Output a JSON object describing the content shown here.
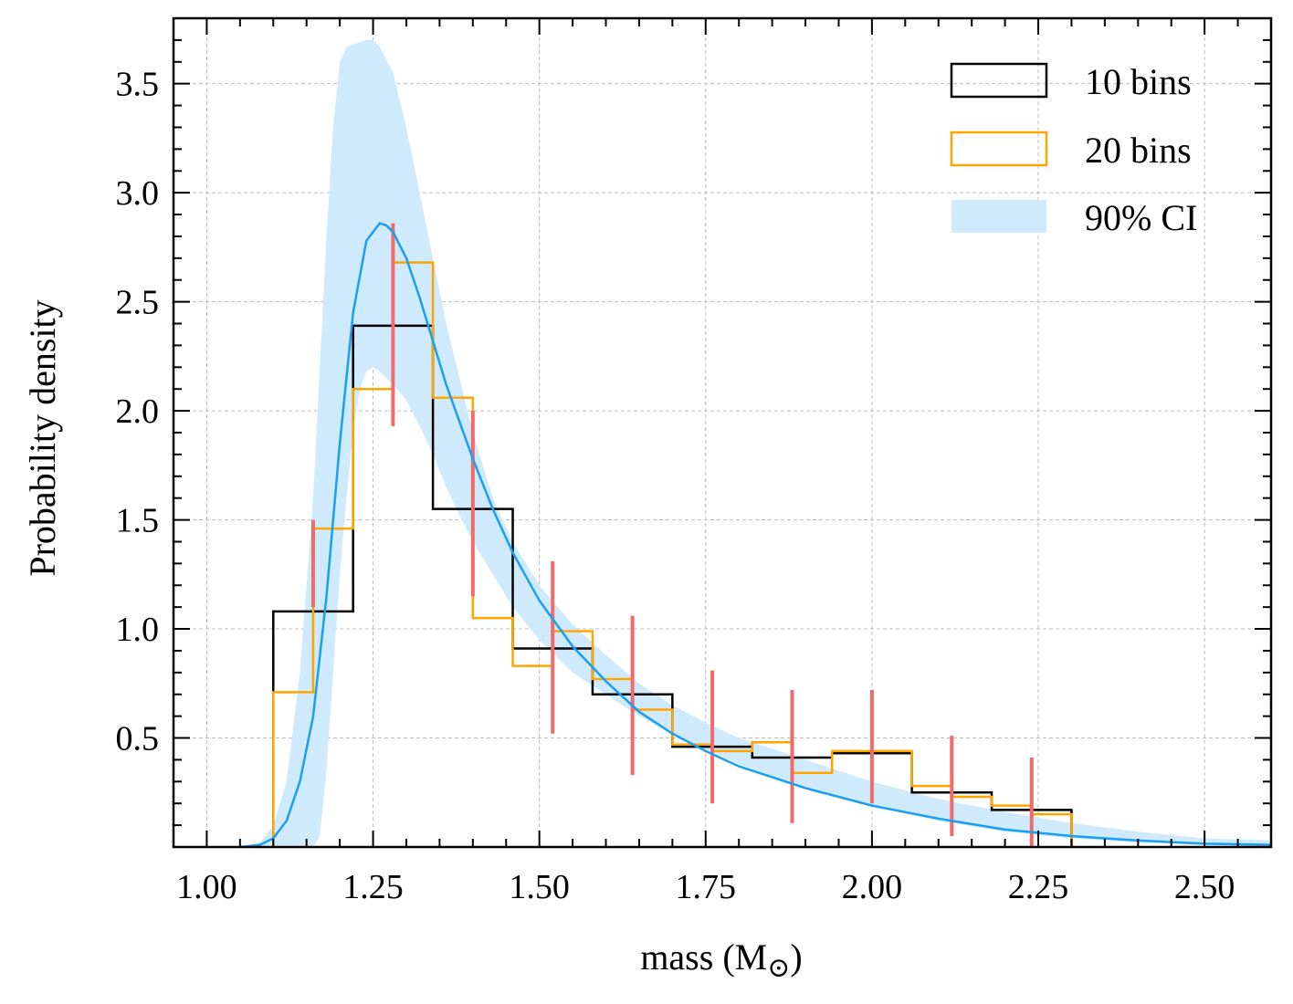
{
  "chart_data": {
    "type": "histogram",
    "title": "",
    "xlabel": "mass (M",
    "xlabel_sub": "⊙",
    "xlabel_close": ")",
    "ylabel": "Probability density",
    "xlim": [
      0.95,
      2.6
    ],
    "ylim": [
      0.0,
      3.8
    ],
    "grid": true,
    "legend_position": "top-right",
    "x_ticks": [
      1.0,
      1.25,
      1.5,
      1.75,
      2.0,
      2.25,
      2.5
    ],
    "x_tick_labels": [
      "1.00",
      "1.25",
      "1.50",
      "1.75",
      "2.00",
      "2.25",
      "2.50"
    ],
    "y_ticks": [
      0.5,
      1.0,
      1.5,
      2.0,
      2.5,
      3.0,
      3.5
    ],
    "y_tick_labels": [
      "0.5",
      "1.0",
      "1.5",
      "2.0",
      "2.5",
      "3.0",
      "3.5"
    ],
    "legend": [
      {
        "label": "10 bins",
        "kind": "outline",
        "color": "#000000"
      },
      {
        "label": "20 bins",
        "kind": "outline",
        "color": "#ffa500"
      },
      {
        "label": "90% CI",
        "kind": "fill",
        "color": "#cfeafc"
      }
    ],
    "hist_10": {
      "name": "10 bins",
      "color": "#000000",
      "edges": [
        1.1,
        1.22,
        1.34,
        1.46,
        1.58,
        1.7,
        1.82,
        1.94,
        2.06,
        2.18,
        2.3
      ],
      "values": [
        1.08,
        2.39,
        1.55,
        0.91,
        0.7,
        0.46,
        0.41,
        0.43,
        0.25,
        0.17
      ]
    },
    "hist_20": {
      "name": "20 bins",
      "color": "#ffa500",
      "edges": [
        1.1,
        1.16,
        1.22,
        1.28,
        1.34,
        1.4,
        1.46,
        1.52,
        1.58,
        1.64,
        1.7,
        1.76,
        1.82,
        1.88,
        1.94,
        2.0,
        2.06,
        2.12,
        2.18,
        2.24,
        2.3
      ],
      "values": [
        0.71,
        1.46,
        2.1,
        2.68,
        2.06,
        1.05,
        0.83,
        0.99,
        0.77,
        0.63,
        0.47,
        0.44,
        0.48,
        0.34,
        0.44,
        0.44,
        0.28,
        0.23,
        0.19,
        0.15
      ]
    },
    "error_bars": {
      "color": "#f26b6b",
      "x": [
        1.16,
        1.28,
        1.4,
        1.52,
        1.64,
        1.76,
        1.88,
        2.0,
        2.12,
        2.24
      ],
      "low": [
        1.1,
        1.93,
        1.15,
        0.52,
        0.33,
        0.2,
        0.11,
        0.2,
        0.05,
        0.0
      ],
      "high": [
        1.5,
        2.86,
        2.0,
        1.31,
        1.06,
        0.81,
        0.72,
        0.72,
        0.51,
        0.41
      ]
    },
    "ci_band": {
      "name": "90% CI",
      "color": "#cfeafc",
      "x": [
        1.05,
        1.08,
        1.1,
        1.12,
        1.14,
        1.16,
        1.17,
        1.18,
        1.19,
        1.2,
        1.21,
        1.22,
        1.23,
        1.24,
        1.25,
        1.26,
        1.28,
        1.3,
        1.32,
        1.34,
        1.36,
        1.38,
        1.4,
        1.43,
        1.46,
        1.5,
        1.55,
        1.6,
        1.65,
        1.7,
        1.75,
        1.8,
        1.9,
        2.0,
        2.1,
        2.2,
        2.3,
        2.4,
        2.5,
        2.6
      ],
      "lower": [
        0.0,
        0.0,
        0.0,
        0.0,
        0.0,
        0.0,
        0.05,
        0.35,
        0.8,
        1.25,
        1.6,
        1.9,
        2.1,
        2.18,
        2.2,
        2.18,
        2.12,
        2.05,
        1.93,
        1.8,
        1.65,
        1.52,
        1.4,
        1.25,
        1.1,
        0.95,
        0.8,
        0.7,
        0.6,
        0.52,
        0.45,
        0.38,
        0.27,
        0.19,
        0.12,
        0.07,
        0.04,
        0.02,
        0.01,
        0.005
      ],
      "upper": [
        0.0,
        0.02,
        0.1,
        0.3,
        0.8,
        1.6,
        2.2,
        2.8,
        3.3,
        3.6,
        3.67,
        3.68,
        3.69,
        3.7,
        3.7,
        3.67,
        3.55,
        3.3,
        3.0,
        2.7,
        2.4,
        2.15,
        1.9,
        1.6,
        1.4,
        1.2,
        1.02,
        0.88,
        0.75,
        0.65,
        0.57,
        0.5,
        0.4,
        0.3,
        0.22,
        0.16,
        0.11,
        0.07,
        0.04,
        0.03
      ]
    },
    "model_curve": {
      "color": "#1a9ff0",
      "x": [
        1.05,
        1.08,
        1.1,
        1.12,
        1.14,
        1.16,
        1.18,
        1.2,
        1.22,
        1.24,
        1.26,
        1.27,
        1.28,
        1.3,
        1.32,
        1.34,
        1.36,
        1.38,
        1.4,
        1.43,
        1.46,
        1.5,
        1.55,
        1.6,
        1.65,
        1.7,
        1.75,
        1.8,
        1.9,
        2.0,
        2.1,
        2.2,
        2.3,
        2.4,
        2.5,
        2.6
      ],
      "y": [
        0.0,
        0.01,
        0.04,
        0.12,
        0.3,
        0.6,
        1.15,
        1.85,
        2.45,
        2.78,
        2.86,
        2.85,
        2.82,
        2.7,
        2.52,
        2.32,
        2.12,
        1.95,
        1.78,
        1.55,
        1.35,
        1.13,
        0.92,
        0.76,
        0.62,
        0.52,
        0.44,
        0.37,
        0.27,
        0.19,
        0.13,
        0.08,
        0.05,
        0.03,
        0.015,
        0.01
      ]
    }
  }
}
